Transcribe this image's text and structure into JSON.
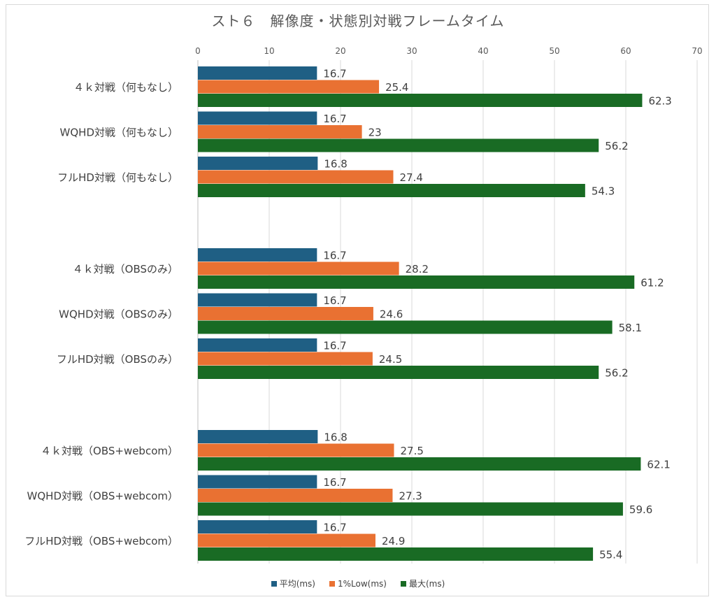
{
  "chart_data": {
    "type": "bar",
    "orientation": "horizontal",
    "title": "スト６　解像度・状態別対戦フレームタイム",
    "xlim": [
      0,
      70
    ],
    "x_ticks": [
      0,
      10,
      20,
      30,
      40,
      50,
      60,
      70
    ],
    "x_axis_position": "top",
    "grid": true,
    "legend_position": "bottom",
    "groups": [
      {
        "categories": [
          "４ｋ対戦（何もなし）",
          "WQHD対戦（何もなし）",
          "フルHD対戦（何もなし）"
        ]
      },
      {
        "categories": [
          "４ｋ対戦（OBSのみ）",
          "WQHD対戦（OBSのみ）",
          "フルHD対戦（OBSのみ）"
        ]
      },
      {
        "categories": [
          "４ｋ対戦（OBS+webcom）",
          "WQHD対戦（OBS+webcom）",
          "フルHD対戦（OBS+webcom）"
        ]
      }
    ],
    "series": [
      {
        "name": "平均(ms)",
        "color": "#1f5f84",
        "values": [
          16.7,
          16.7,
          16.8,
          16.7,
          16.7,
          16.7,
          16.8,
          16.7,
          16.7
        ]
      },
      {
        "name": "1%Low(ms)",
        "color": "#e97132",
        "values": [
          25.4,
          23,
          27.4,
          28.2,
          24.6,
          24.5,
          27.5,
          27.3,
          24.9
        ]
      },
      {
        "name": "最大(ms)",
        "color": "#196b24",
        "values": [
          62.3,
          56.2,
          54.3,
          61.2,
          58.1,
          56.2,
          62.1,
          59.6,
          55.4
        ]
      }
    ]
  }
}
